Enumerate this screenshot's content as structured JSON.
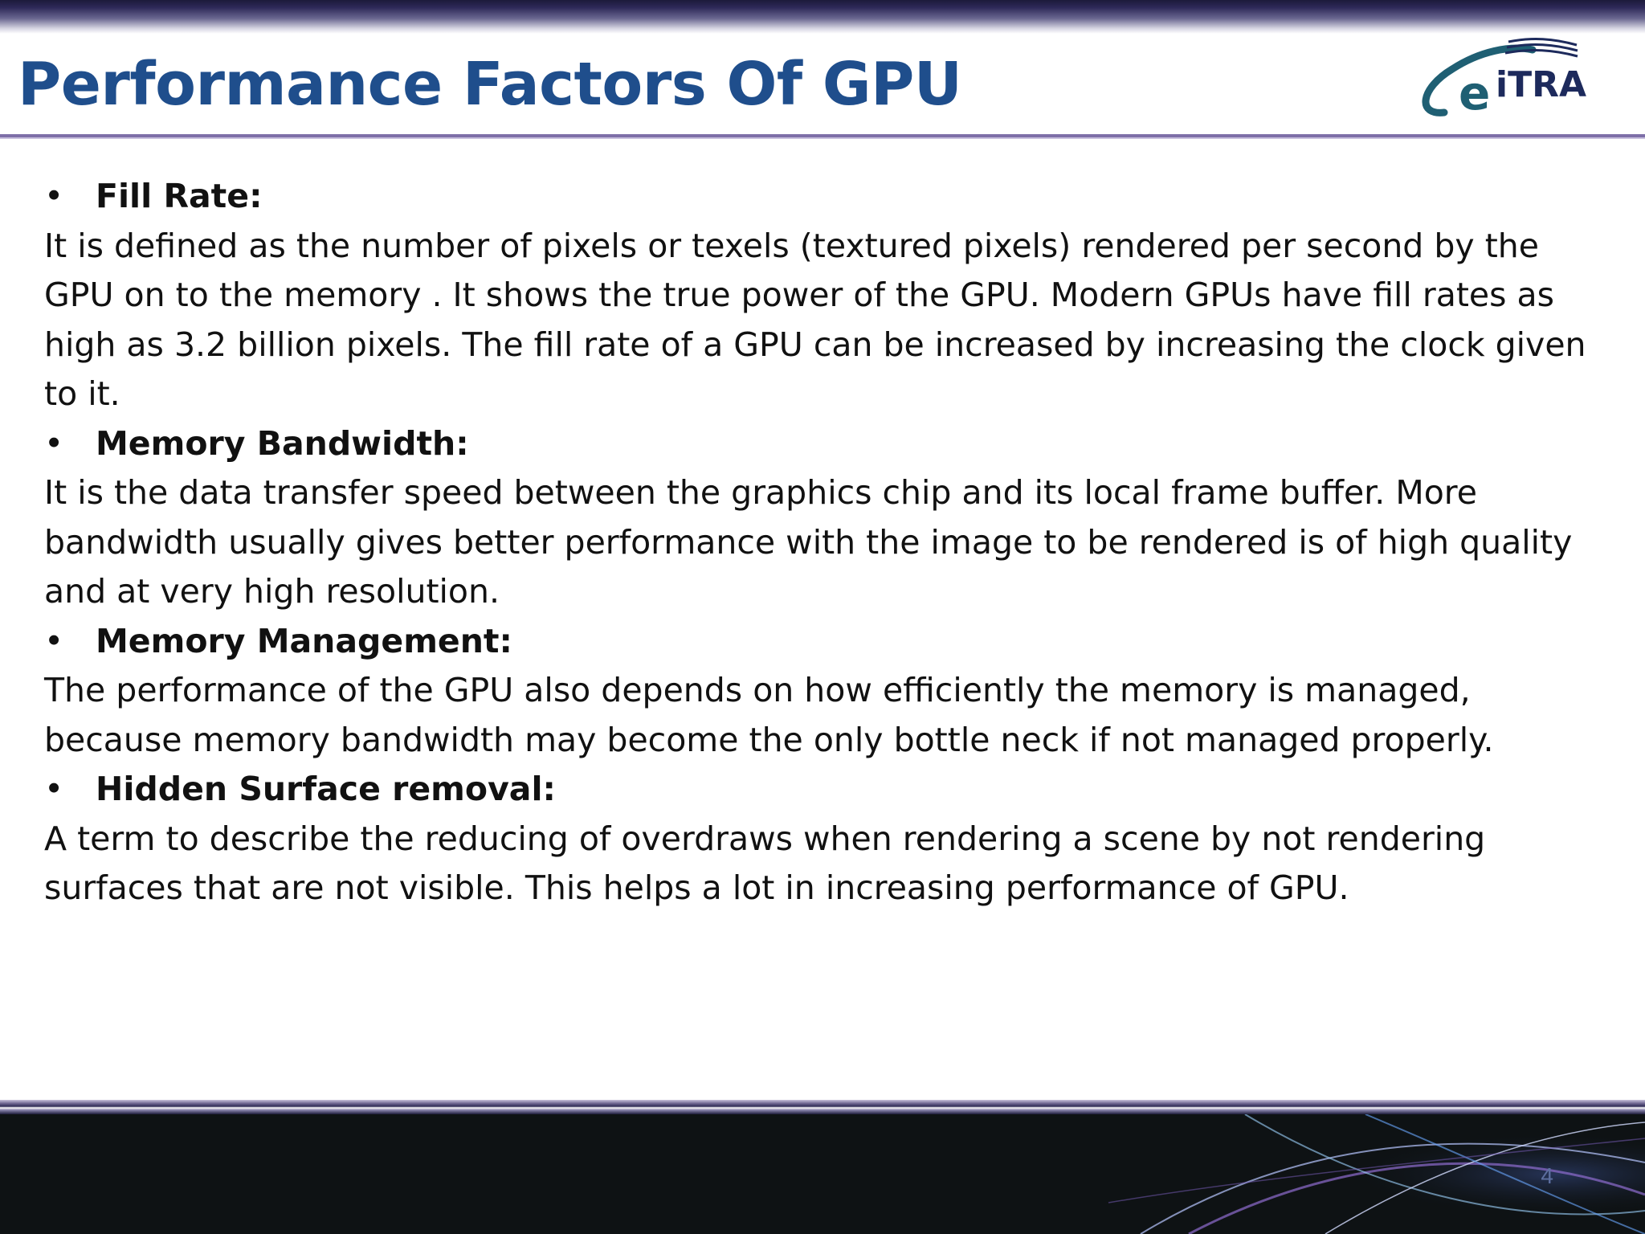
{
  "slide": {
    "title": "Performance Factors Of GPU",
    "page_number": "4",
    "logo_text": "eiTRA"
  },
  "content": {
    "bullet_symbol": "•",
    "items": [
      {
        "heading": "Fill Rate:",
        "body": "It is defined as the number of pixels or texels (textured pixels) rendered per second by the\nGPU on to the memory . It shows the true power of the GPU. Modern GPUs have fill rates as\nhigh as 3.2 billion pixels. The fill rate of a GPU can be increased by increasing the clock given\nto it."
      },
      {
        "heading": "Memory Bandwidth:",
        "body": "It is the data transfer speed between the graphics chip and its local frame buffer. More\nbandwidth usually gives better performance with the image to be rendered is of high quality\nand at very high resolution."
      },
      {
        "heading": "Memory Management:",
        "body": "The performance of the GPU also depends on how efficiently the memory is managed,\nbecause memory bandwidth may become the only bottle neck if not managed properly."
      },
      {
        "heading": "Hidden Surface removal:",
        "body": "A term to describe the reducing of overdraws when rendering a scene by not rendering\nsurfaces that are not visible. This helps a lot in increasing performance of GPU."
      }
    ]
  },
  "colors": {
    "title": "#1f4e8c",
    "rule": "#7e6fa8",
    "footer": "#0e1214",
    "logo_teal": "#1f5f73",
    "logo_navy": "#1d2a5c"
  }
}
